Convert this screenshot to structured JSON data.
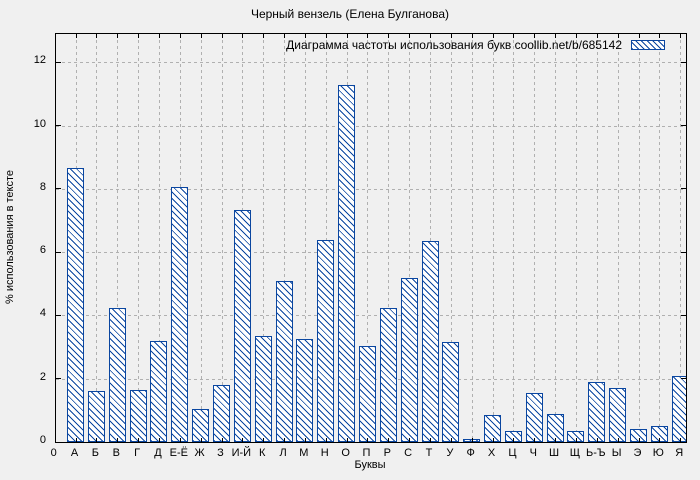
{
  "chart_data": {
    "type": "bar",
    "title": "Черный вензель (Елена Булганова)",
    "legend": "Диаграмма частоты использования букв coollib.net/b/685142",
    "legend_position": "top-right",
    "xlabel": "Буквы",
    "ylabel": "% использования в тексте",
    "categories": [
      "0",
      "А",
      "Б",
      "В",
      "Г",
      "Д",
      "Е-Ё",
      "Ж",
      "З",
      "И-Й",
      "К",
      "Л",
      "М",
      "Н",
      "О",
      "П",
      "Р",
      "С",
      "Т",
      "У",
      "Ф",
      "Х",
      "Ц",
      "Ч",
      "Ш",
      "Щ",
      "Ь-Ъ",
      "Ы",
      "Э",
      "Ю",
      "Я"
    ],
    "values": [
      0,
      8.65,
      1.6,
      4.25,
      1.65,
      3.2,
      8.05,
      1.05,
      1.8,
      7.35,
      3.35,
      5.1,
      3.25,
      6.4,
      11.3,
      3.05,
      4.25,
      5.2,
      6.35,
      3.15,
      0.1,
      0.85,
      0.35,
      1.55,
      0.9,
      0.35,
      1.9,
      1.7,
      0.4,
      0.5,
      2.1
    ],
    "yticks": [
      0,
      2,
      4,
      6,
      8,
      10,
      12
    ],
    "ylim": [
      0,
      12.9
    ],
    "grid": "dashed",
    "bar_style": "white fill with blue backslash hatch",
    "colors": {
      "bar": "#0a46a0",
      "bar_fill": "#ffffff",
      "grid": "#b0b0b0",
      "text": "#000000",
      "background": "#f0f0f0",
      "plot_border": "#000000"
    }
  }
}
